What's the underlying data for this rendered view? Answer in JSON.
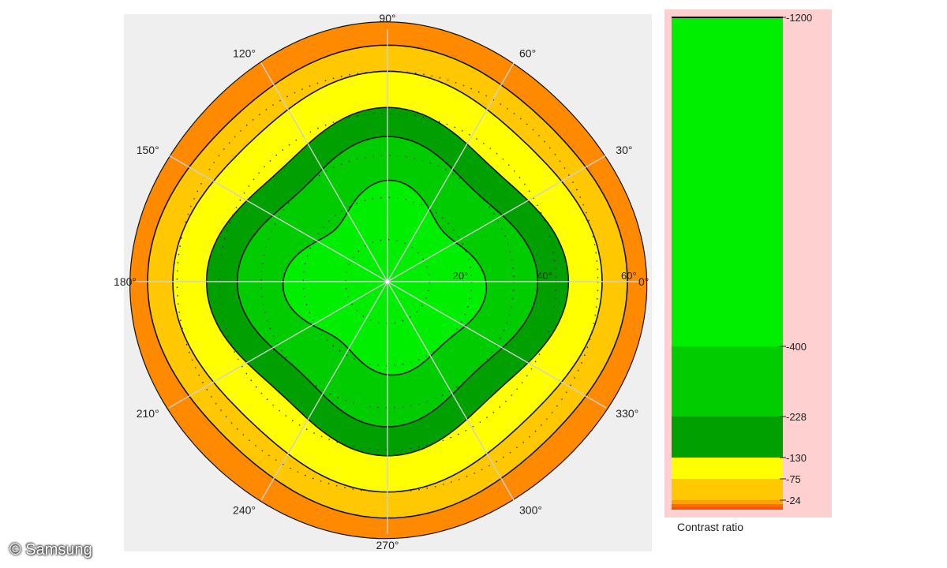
{
  "chart_data": {
    "type": "polar-contour",
    "angle_labels": [
      "90°",
      "60°",
      "30°",
      "0°",
      "330°",
      "300°",
      "270°",
      "240°",
      "210°",
      "180°",
      "150°",
      "120°"
    ],
    "angles": [
      90,
      60,
      30,
      0,
      330,
      300,
      270,
      240,
      210,
      180,
      150,
      120
    ],
    "radial_labels": [
      "20°",
      "40°",
      "60°"
    ],
    "radial_values": [
      20,
      40,
      60
    ],
    "rlim": [
      0,
      60
    ],
    "contour_levels": [
      {
        "value": 24,
        "color": "#ff8a00"
      },
      {
        "value": 75,
        "color": "#ffc800"
      },
      {
        "value": 130,
        "color": "#ffff00"
      },
      {
        "value": 228,
        "color": "#00a000"
      },
      {
        "value": 400,
        "color": "#00cc00"
      },
      {
        "value": 1200,
        "color": "#00ee00"
      }
    ],
    "legend": {
      "title": "Contrast ratio",
      "tick_labels": [
        "1200",
        "400",
        "228",
        "130",
        "75",
        "24"
      ],
      "tick_values": [
        1200,
        400,
        228,
        130,
        75,
        24
      ],
      "bands": [
        {
          "from": 400,
          "to": 1200,
          "color": "#00ee00"
        },
        {
          "from": 228,
          "to": 400,
          "color": "#00cc00"
        },
        {
          "from": 130,
          "to": 228,
          "color": "#00a000"
        },
        {
          "from": 75,
          "to": 130,
          "color": "#ffff00"
        },
        {
          "from": 24,
          "to": 75,
          "color": "#ffc800"
        },
        {
          "from": 0,
          "to": 24,
          "color": "#ff5000"
        }
      ]
    }
  },
  "copyright": "© Samsung"
}
